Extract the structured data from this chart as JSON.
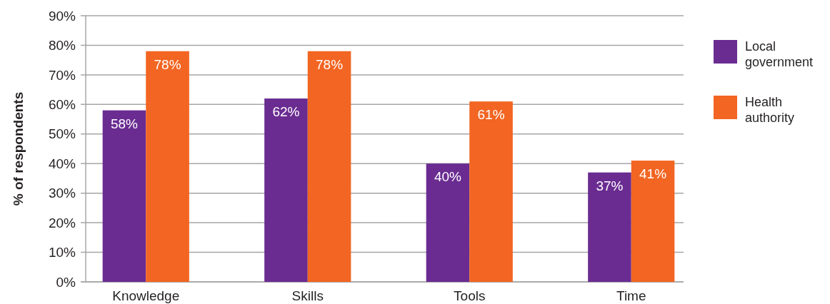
{
  "chart_data": {
    "type": "bar",
    "ylabel": "% of respondents",
    "categories": [
      "Knowledge",
      "Skills",
      "Tools",
      "Time"
    ],
    "series": [
      {
        "name": "Local government",
        "color": "#6a2c91",
        "values": [
          58,
          62,
          40,
          37
        ],
        "value_labels": [
          "58%",
          "62%",
          "40%",
          "37%"
        ]
      },
      {
        "name": "Health authority",
        "color": "#f26522",
        "values": [
          78,
          78,
          61,
          41
        ],
        "value_labels": [
          "78%",
          "78%",
          "61%",
          "41%"
        ]
      }
    ],
    "ylim": [
      0,
      90
    ],
    "yticks": [
      {
        "value": 0,
        "label": "0%"
      },
      {
        "value": 10,
        "label": "10%"
      },
      {
        "value": 20,
        "label": "20%"
      },
      {
        "value": 30,
        "label": "30%"
      },
      {
        "value": 40,
        "label": "40%"
      },
      {
        "value": 50,
        "label": "50%"
      },
      {
        "value": 60,
        "label": "60%"
      },
      {
        "value": 70,
        "label": "70%"
      },
      {
        "value": 80,
        "label": "80%"
      },
      {
        "value": 90,
        "label": "90%"
      }
    ],
    "grid": "y",
    "legend": "right"
  }
}
